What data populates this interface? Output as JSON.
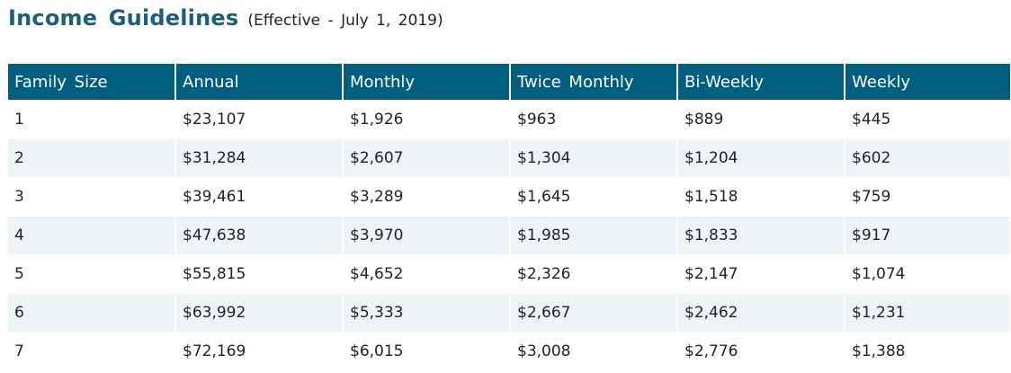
{
  "heading": {
    "title": "Income Guidelines",
    "subtitle": "(Effective - July 1, 2019)"
  },
  "table": {
    "columns": [
      "Family Size",
      "Annual",
      "Monthly",
      "Twice Monthly",
      "Bi-Weekly",
      "Weekly"
    ],
    "rows": [
      [
        "1",
        "$23,107",
        "$1,926",
        "$963",
        "$889",
        "$445"
      ],
      [
        "2",
        "$31,284",
        "$2,607",
        "$1,304",
        "$1,204",
        "$602"
      ],
      [
        "3",
        "$39,461",
        "$3,289",
        "$1,645",
        "$1,518",
        "$759"
      ],
      [
        "4",
        "$47,638",
        "$3,970",
        "$1,985",
        "$1,833",
        "$917"
      ],
      [
        "5",
        "$55,815",
        "$4,652",
        "$2,326",
        "$2,147",
        "$1,074"
      ],
      [
        "6",
        "$63,992",
        "$5,333",
        "$2,667",
        "$2,462",
        "$1,231"
      ],
      [
        "7",
        "$72,169",
        "$6,015",
        "$3,008",
        "$2,776",
        "$1,388"
      ]
    ]
  },
  "colors": {
    "title": "#1d5e79",
    "header_background": "#005f7e",
    "alt_row_background": "#eef4f6"
  }
}
